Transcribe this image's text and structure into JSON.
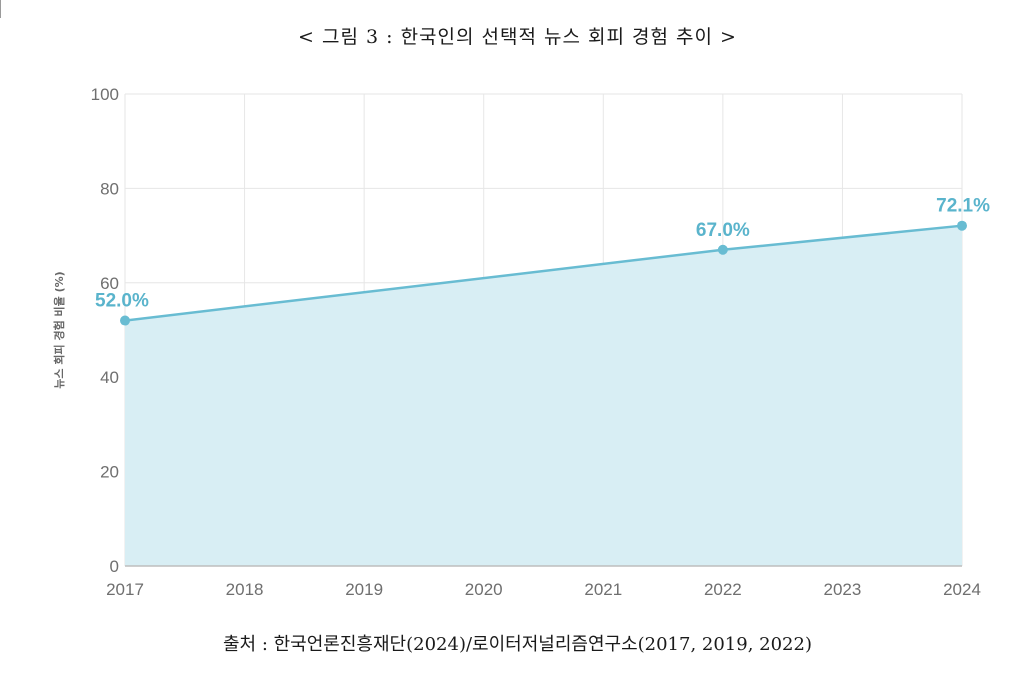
{
  "figure": {
    "title": "< 그림 3 : 한국인의 선택적 뉴스 회피 경험 추이 >",
    "source": "출처 : 한국언론진흥재단(2024)/로이터저널리즘연구소(2017, 2019, 2022)"
  },
  "chart_data": {
    "type": "area",
    "title": "< 그림 3 : 한국인의 선택적 뉴스 회피 경험 추이 >",
    "xlabel": "",
    "ylabel": "뉴스 회피 경험 비율 (%)",
    "x_ticks": [
      "2017",
      "2018",
      "2019",
      "2020",
      "2021",
      "2022",
      "2023",
      "2024"
    ],
    "y_ticks": [
      "0",
      "20",
      "40",
      "60",
      "80",
      "100"
    ],
    "xlim": [
      2017,
      2024
    ],
    "ylim": [
      0,
      100
    ],
    "grid": true,
    "series": [
      {
        "x": [
          2017,
          2022,
          2024
        ],
        "values": [
          52.0,
          67.0,
          72.1
        ],
        "labels": [
          "52.0%",
          "67.0%",
          "72.1%"
        ]
      }
    ],
    "colors": {
      "line": "#68bcd2",
      "fill": "#d8eef4",
      "label": "#5ab4cc",
      "grid": "#e6e6e6",
      "axis": "#bdbdbd"
    }
  }
}
